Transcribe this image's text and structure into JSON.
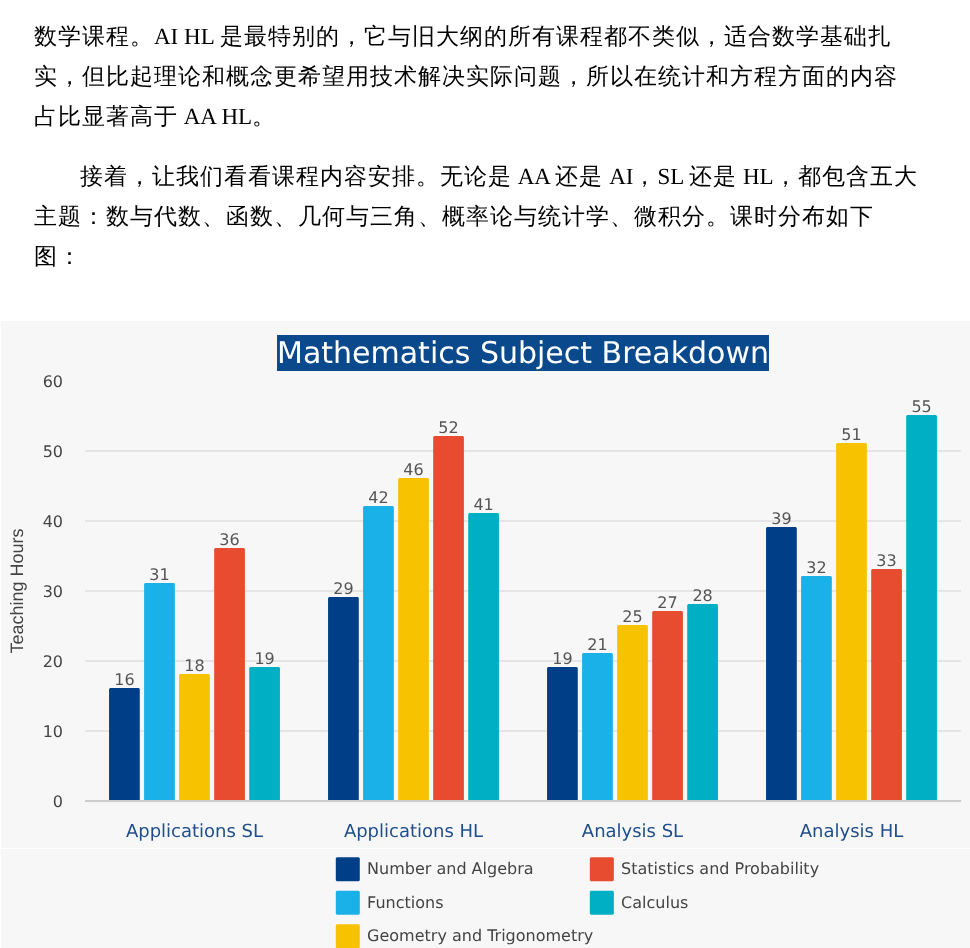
{
  "chart_data": {
    "type": "bar",
    "title": "Mathematics Subject Breakdown",
    "ylabel": "Teaching Hours",
    "annotations": [
      "数学课程。AI HL 是最特别的，它与旧大纲的所有课程都不类似，适合数学基础扎实，但比起理论和概念更希望用技术解决实际问题，所以在统计和方程方面的内容占比显著高于 AA HL。",
      "接着，让我们看看课程内容安排。无论是 AA 还是 AI，SL 还是 HL，都包含五大主题：数与代数、函数、几何与三角、概率论与统计学、微积分。课时分布如下图："
    ],
    "categories": [
      "Applications SL",
      "Applications HL",
      "Analysis SL",
      "Analysis HL"
    ],
    "series": [
      {
        "name": "Number and Algebra",
        "color": "#003f87",
        "values": [
          16,
          29,
          19,
          39
        ]
      },
      {
        "name": "Functions",
        "color": "#1ab0e8",
        "values": [
          31,
          42,
          21,
          32
        ]
      },
      {
        "name": "Geometry and Trigonometry",
        "color": "#f7c200",
        "values": [
          18,
          46,
          25,
          51
        ]
      },
      {
        "name": "Statistics and Probability",
        "color": "#e84c30",
        "values": [
          36,
          52,
          27,
          33
        ]
      },
      {
        "name": "Calculus",
        "color": "#00afc4",
        "values": [
          19,
          41,
          28,
          55
        ]
      }
    ],
    "ylim": [
      0,
      60
    ],
    "yticks": [
      0,
      10,
      20,
      30,
      40,
      50,
      60
    ],
    "grid": "y",
    "legend": "bottom",
    "data_labels": true
  }
}
